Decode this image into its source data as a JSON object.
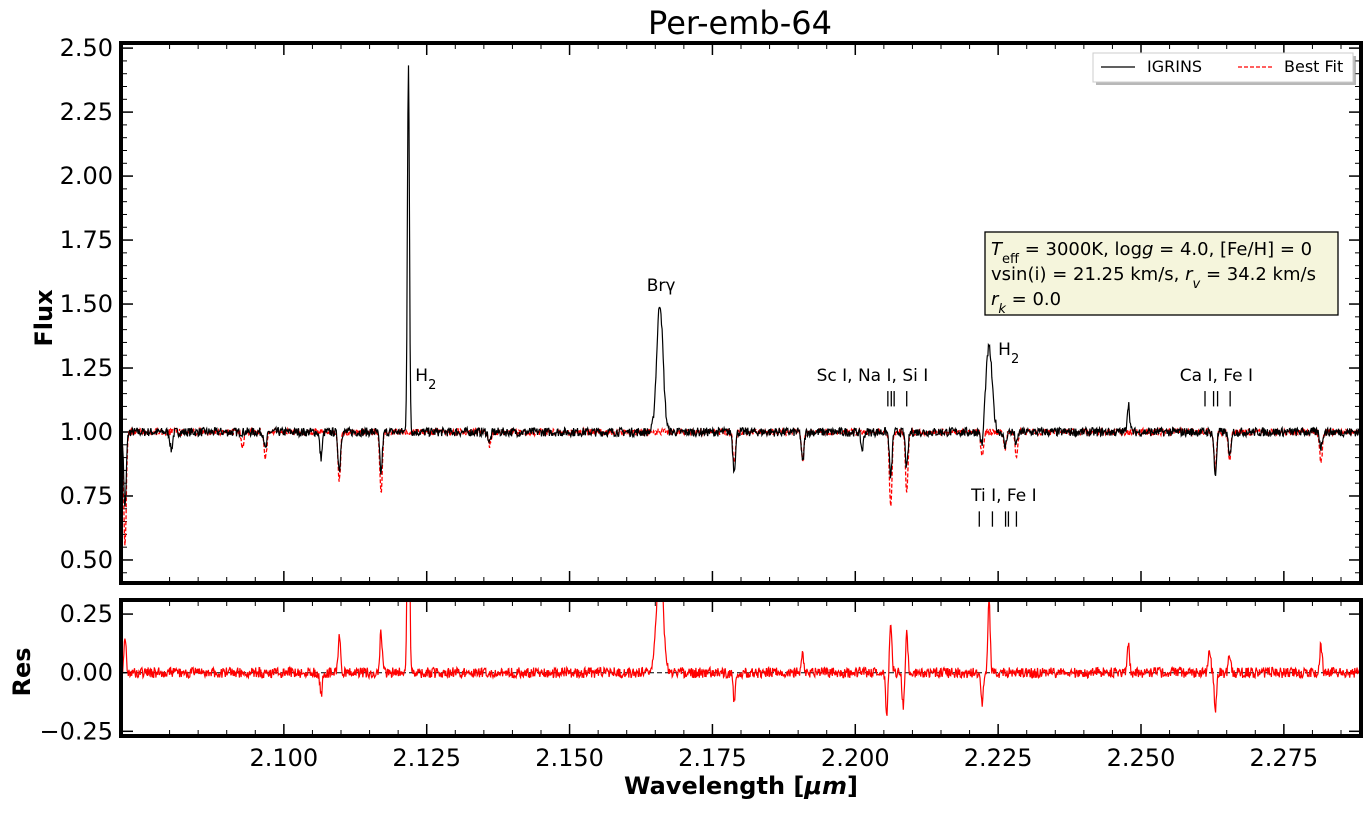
{
  "colors": {
    "observed": "#000000",
    "model": "#ff0000",
    "box_fill": "#f5f5dc",
    "background": "#ffffff"
  },
  "chart_data": [
    {
      "type": "line",
      "panel": "main",
      "title": "Per-emb-64",
      "ylabel": "Flux",
      "xlim": [
        2.0715,
        2.2885
      ],
      "ylim": [
        0.41,
        2.52
      ],
      "yticks": [
        0.5,
        0.75,
        1.0,
        1.25,
        1.5,
        1.75,
        2.0,
        2.25,
        2.5
      ],
      "ytick_labels": [
        "0.50",
        "0.75",
        "1.00",
        "1.25",
        "1.50",
        "1.75",
        "2.00",
        "2.25",
        "2.50"
      ],
      "xticks": [
        2.1,
        2.125,
        2.15,
        2.175,
        2.2,
        2.225,
        2.25,
        2.275
      ],
      "legend": {
        "placement": "top-right",
        "entries": [
          "IGRINS",
          "Best Fit"
        ]
      },
      "series": [
        {
          "name": "IGRINS",
          "style": "solid",
          "continuum": 1.0,
          "features": [
            {
              "x": 2.1218,
              "depth": 1.42
            },
            {
              "x": 2.1658,
              "depth": 0.5
            },
            {
              "x": 2.2234,
              "depth": 0.33
            },
            {
              "x": 2.2478,
              "depth": 0.11
            },
            {
              "x": 2.0722,
              "depth": -0.3
            },
            {
              "x": 2.0803,
              "depth": -0.07
            },
            {
              "x": 2.0968,
              "depth": -0.07
            },
            {
              "x": 2.1065,
              "depth": -0.1
            },
            {
              "x": 2.1097,
              "depth": -0.15
            },
            {
              "x": 2.117,
              "depth": -0.16
            },
            {
              "x": 2.136,
              "depth": -0.04
            },
            {
              "x": 2.1788,
              "depth": -0.15
            },
            {
              "x": 2.1908,
              "depth": -0.12
            },
            {
              "x": 2.2012,
              "depth": -0.07
            },
            {
              "x": 2.2062,
              "depth": -0.18
            },
            {
              "x": 2.209,
              "depth": -0.14
            },
            {
              "x": 2.2222,
              "depth": -0.08
            },
            {
              "x": 2.2262,
              "depth": -0.06
            },
            {
              "x": 2.2282,
              "depth": -0.05
            },
            {
              "x": 2.263,
              "depth": -0.17
            },
            {
              "x": 2.2655,
              "depth": -0.1
            },
            {
              "x": 2.2815,
              "depth": -0.06
            }
          ]
        },
        {
          "name": "Best Fit",
          "style": "dashed",
          "continuum": 1.0,
          "features": [
            {
              "x": 2.0722,
              "depth": -0.45
            },
            {
              "x": 2.0928,
              "depth": -0.06
            },
            {
              "x": 2.0968,
              "depth": -0.1
            },
            {
              "x": 2.1097,
              "depth": -0.19
            },
            {
              "x": 2.117,
              "depth": -0.24
            },
            {
              "x": 2.136,
              "depth": -0.05
            },
            {
              "x": 2.1788,
              "depth": -0.13
            },
            {
              "x": 2.1908,
              "depth": -0.12
            },
            {
              "x": 2.2062,
              "depth": -0.29
            },
            {
              "x": 2.209,
              "depth": -0.24
            },
            {
              "x": 2.2222,
              "depth": -0.1
            },
            {
              "x": 2.2262,
              "depth": -0.07
            },
            {
              "x": 2.2282,
              "depth": -0.1
            },
            {
              "x": 2.263,
              "depth": -0.15
            },
            {
              "x": 2.2655,
              "depth": -0.12
            },
            {
              "x": 2.2815,
              "depth": -0.12
            }
          ]
        }
      ],
      "params_box": {
        "line1": "T_eff = 3000K, log g = 4.0, [Fe/H] = 0",
        "line2": "vsin(i) = 21.25 km/s, r_v = 34.2 km/s",
        "line3": "r_k = 0.0"
      },
      "annotations": [
        {
          "text": "H₂",
          "x": 2.123,
          "y": 1.2
        },
        {
          "text": "Brγ",
          "x": 2.1635,
          "y": 1.55
        },
        {
          "text": "H₂",
          "x": 2.225,
          "y": 1.3
        },
        {
          "text": "Sc I, Na I, Si I",
          "x": 2.203,
          "y": 1.2
        },
        {
          "text": "Ca I, Fe I",
          "x": 2.2632,
          "y": 1.2
        },
        {
          "text": "Ti I, Fe I",
          "x": 2.226,
          "y": 0.73
        }
      ],
      "line_markers": [
        {
          "group": "Sc I, Na I, Si I",
          "x": [
            2.2057,
            2.2063,
            2.2068,
            2.209
          ],
          "y_top": 1.16,
          "y_bottom": 1.1
        },
        {
          "group": "Ca I, Fe I",
          "x": [
            2.2612,
            2.2627,
            2.2634,
            2.2656
          ],
          "y_top": 1.16,
          "y_bottom": 1.1
        },
        {
          "group": "Ti I, Fe I",
          "x": [
            2.2217,
            2.224,
            2.2263,
            2.2268,
            2.2282
          ],
          "y_top": 0.69,
          "y_bottom": 0.63
        }
      ]
    },
    {
      "type": "line",
      "panel": "residual",
      "xlabel": "Wavelength [μm]",
      "ylabel": "Res",
      "xlim": [
        2.0715,
        2.2885
      ],
      "ylim": [
        -0.27,
        0.31
      ],
      "yticks": [
        -0.25,
        0.0,
        0.25
      ],
      "ytick_labels": [
        "−0.25",
        "0.00",
        "0.25"
      ],
      "xticks": [
        2.1,
        2.125,
        2.15,
        2.175,
        2.2,
        2.225,
        2.25,
        2.275
      ],
      "xtick_labels": [
        "2.100",
        "2.125",
        "2.150",
        "2.175",
        "2.200",
        "2.225",
        "2.250",
        "2.275"
      ],
      "zero_line": 0.0,
      "series": [
        {
          "name": "",
          "style": "solid",
          "features": [
            {
              "x": 2.1218,
              "depth": 1.42
            },
            {
              "x": 2.1658,
              "depth": 0.5
            },
            {
              "x": 2.2234,
              "depth": 0.33
            },
            {
              "x": 2.0722,
              "depth": 0.15
            },
            {
              "x": 2.1097,
              "depth": 0.16
            },
            {
              "x": 2.117,
              "depth": 0.18
            },
            {
              "x": 2.2062,
              "depth": 0.2
            },
            {
              "x": 2.2055,
              "depth": -0.17
            },
            {
              "x": 2.209,
              "depth": 0.18
            },
            {
              "x": 2.2084,
              "depth": -0.15
            },
            {
              "x": 2.1788,
              "depth": -0.12
            },
            {
              "x": 2.1908,
              "depth": 0.08
            },
            {
              "x": 2.2222,
              "depth": -0.14
            },
            {
              "x": 2.2478,
              "depth": 0.13
            },
            {
              "x": 2.263,
              "depth": -0.16
            },
            {
              "x": 2.262,
              "depth": 0.1
            },
            {
              "x": 2.2815,
              "depth": 0.12
            },
            {
              "x": 2.1065,
              "depth": -0.1
            },
            {
              "x": 2.2655,
              "depth": 0.08
            }
          ]
        }
      ]
    }
  ]
}
